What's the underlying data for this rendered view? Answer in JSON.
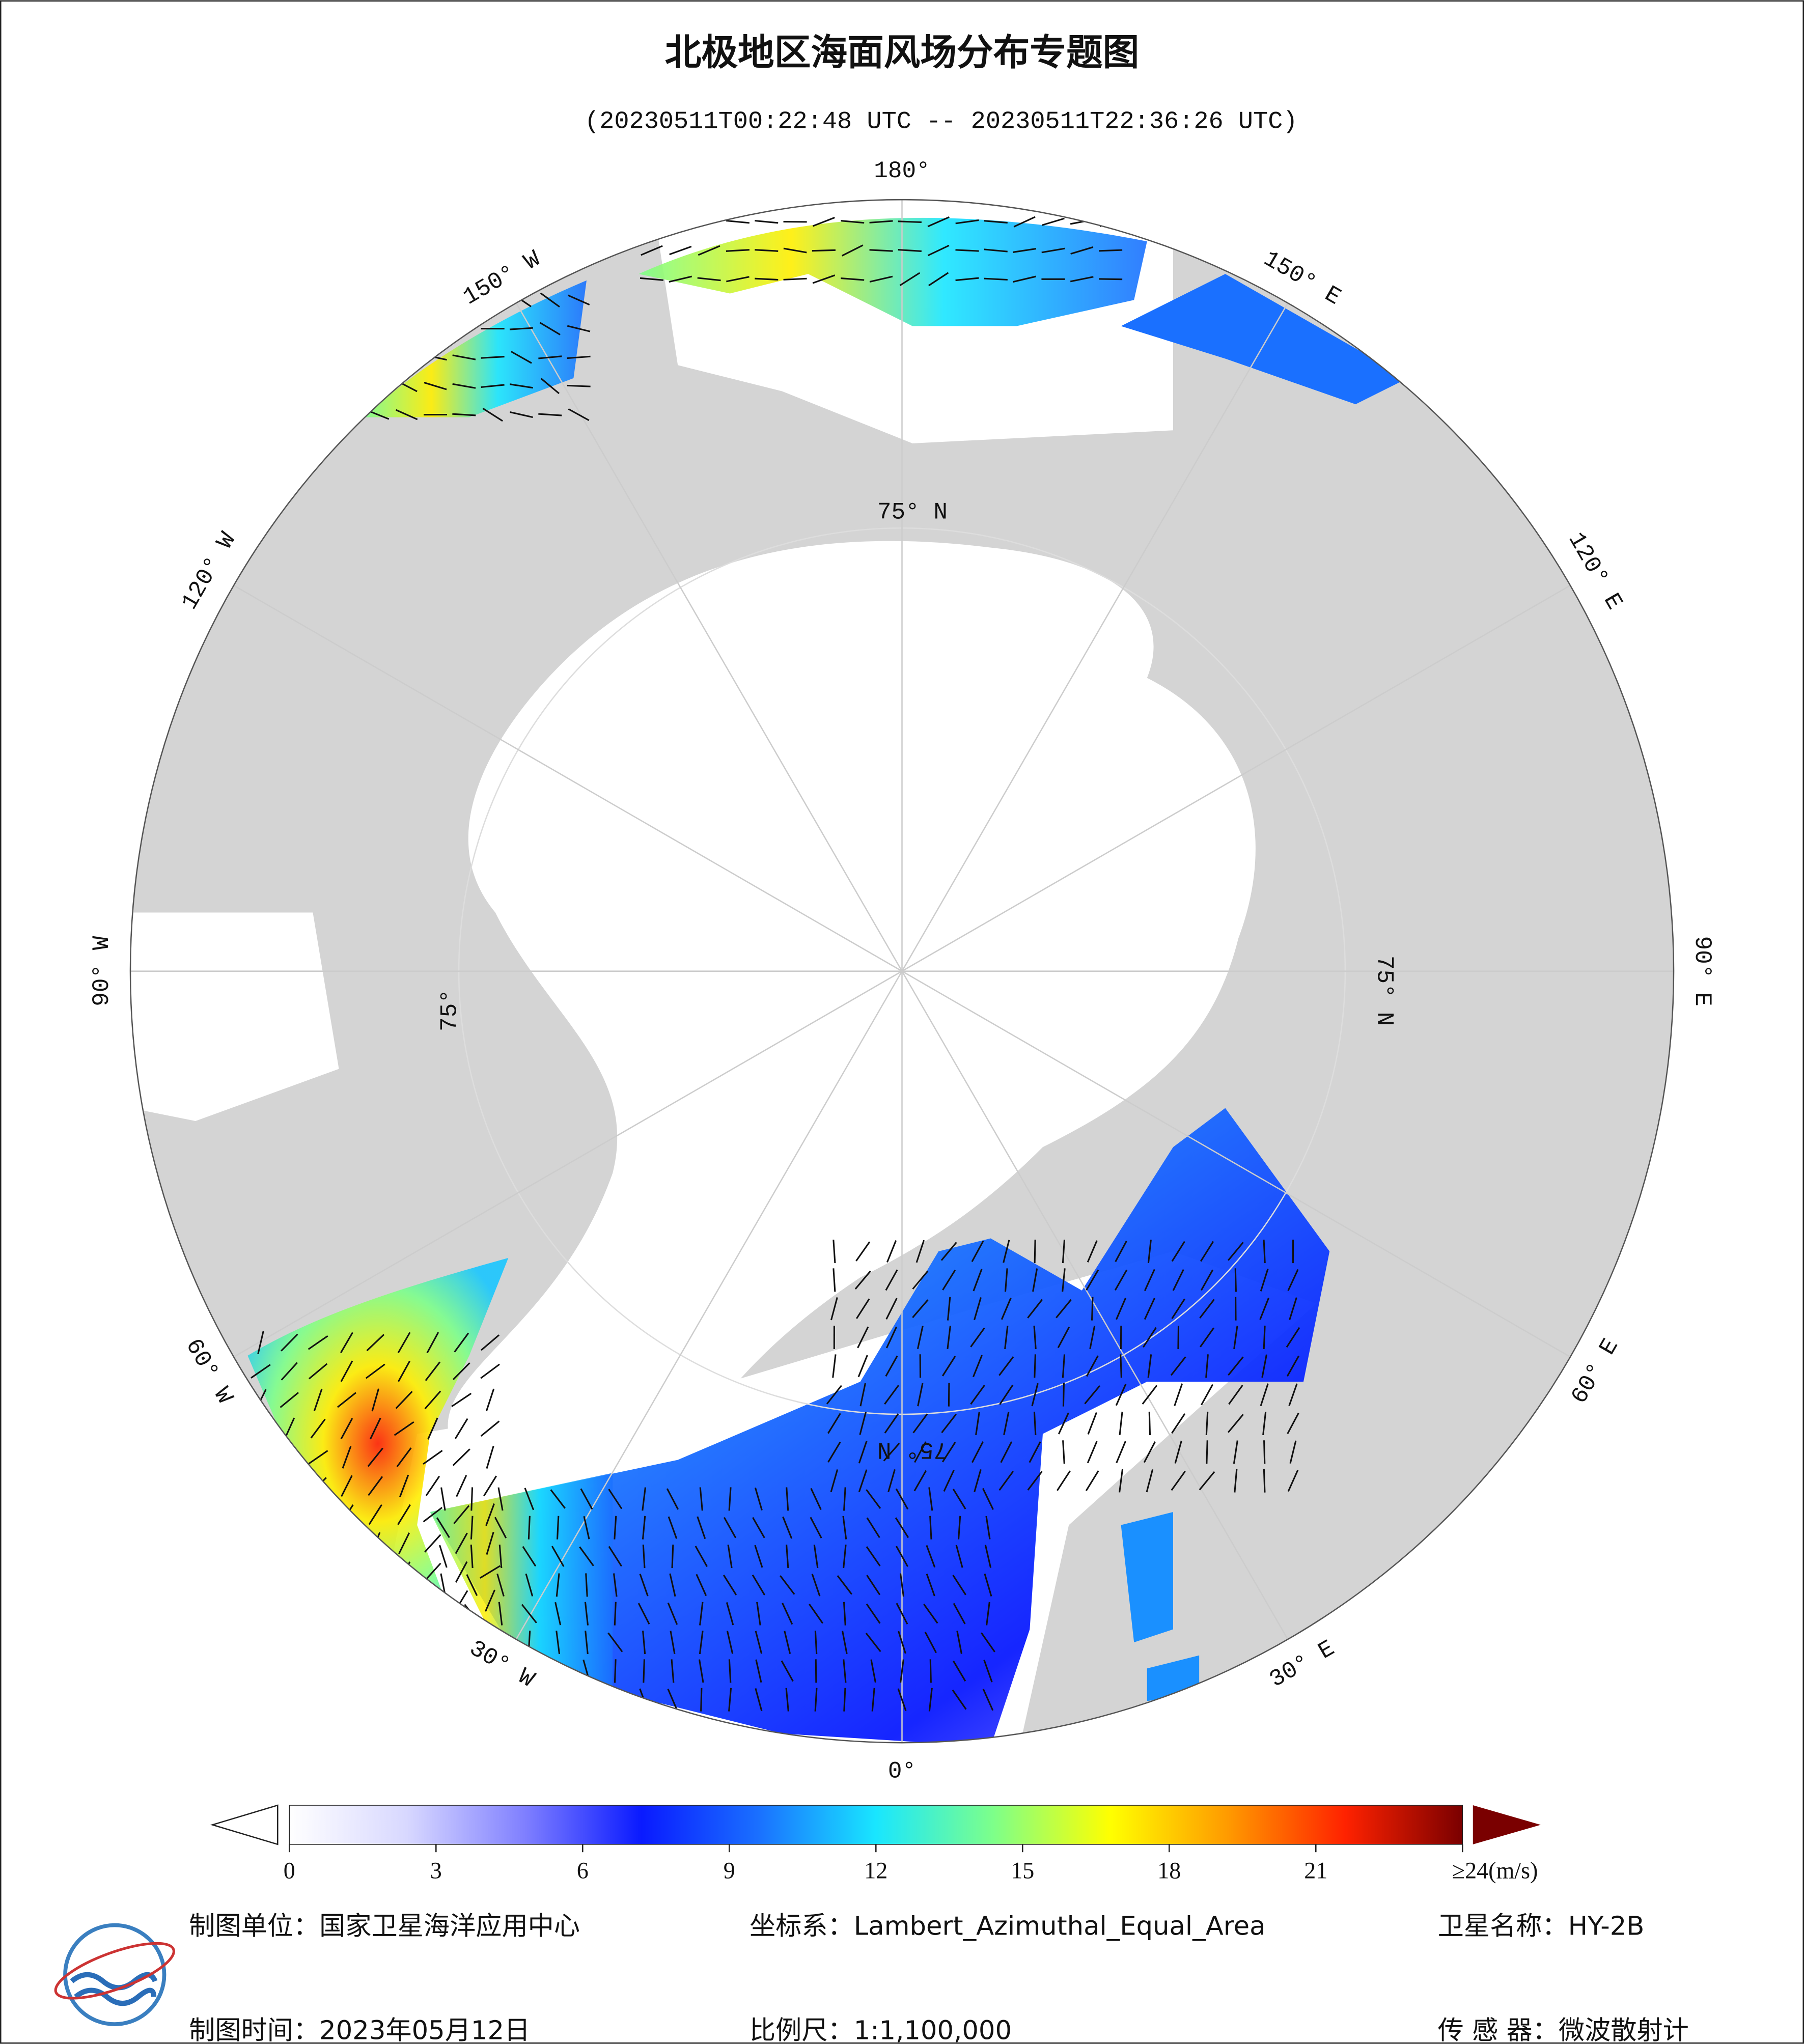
{
  "header": {
    "title": "北极地区海面风场分布专题图",
    "subtitle": "(20230511T00:22:48 UTC -- 20230511T22:36:26 UTC)"
  },
  "map": {
    "longitude_labels": [
      "180°",
      "150° W",
      "120° W",
      "90° W",
      "60° W",
      "30° W",
      "0°",
      "30° E",
      "60° E",
      "90° E",
      "120° E",
      "150° E"
    ],
    "latitude_labels": [
      "75° N",
      "75° N",
      "75°",
      "75° N"
    ]
  },
  "colorbar": {
    "range": [
      0,
      24
    ],
    "ticks": [
      0,
      3,
      6,
      9,
      12,
      15,
      18,
      21,
      {
        "value": 24,
        "label": "≥24(m/s)"
      }
    ],
    "colors": [
      "#ffffff",
      "#d8d8ff",
      "#8080ff",
      "#0a1aff",
      "#1a70ff",
      "#19e6ff",
      "#7dff8a",
      "#ffff00",
      "#ff9a00",
      "#ff2200",
      "#7a0000"
    ]
  },
  "footer": {
    "producer": "制图单位：国家卫星海洋应用中心",
    "coordinate_system": "坐标系：Lambert_Azimuthal_Equal_Area",
    "satellite": "卫星名称：HY-2B",
    "date": "制图时间：2023年05月12日",
    "scale": "比例尺：1:1,100,000",
    "sensor": "传 感 器：微波散射计"
  }
}
